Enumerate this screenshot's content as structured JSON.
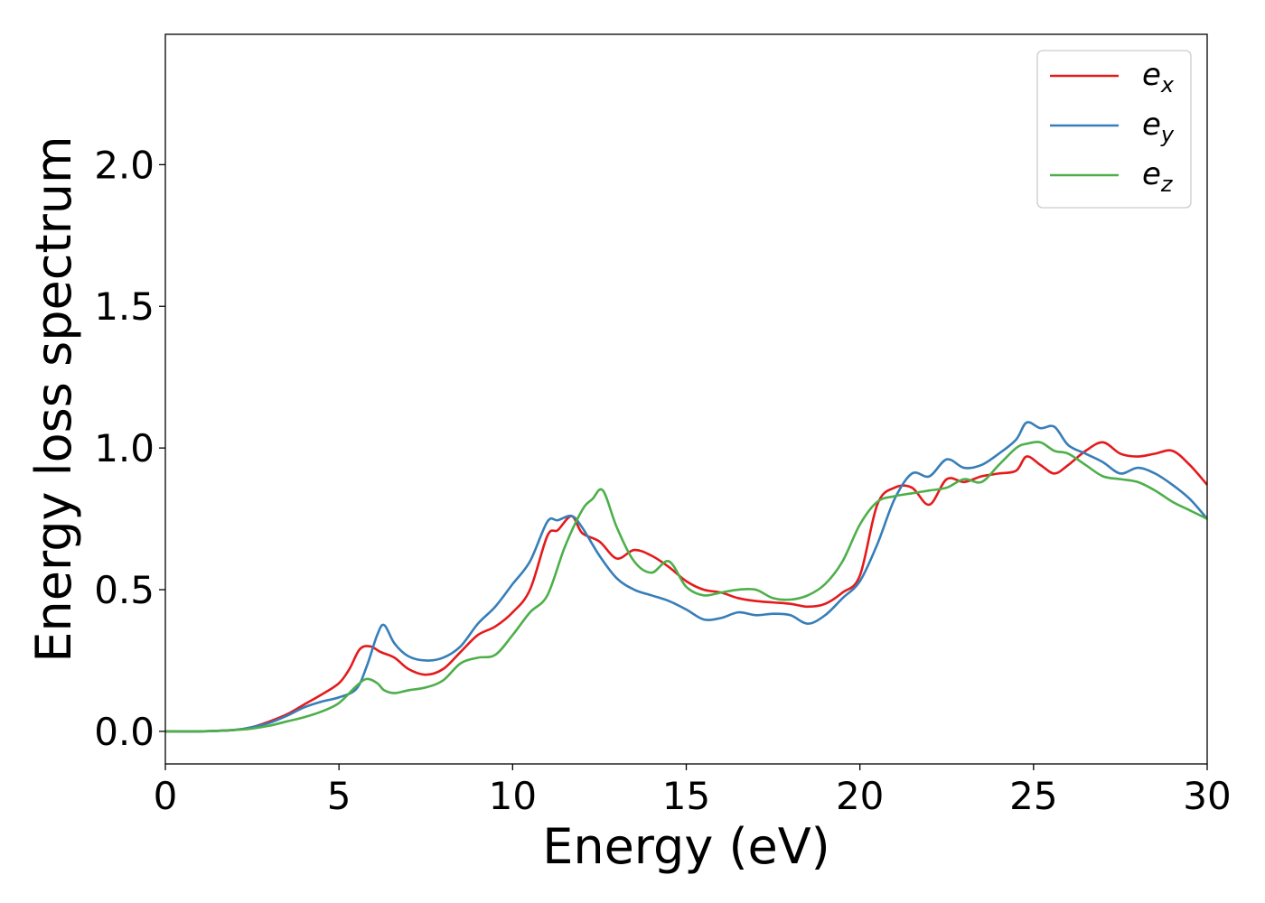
{
  "chart_data": {
    "type": "line",
    "title": "",
    "xlabel": "Energy (eV)",
    "ylabel": "Energy loss spectrum",
    "xlim": [
      0,
      30
    ],
    "ylim": [
      -0.115,
      2.46
    ],
    "xticks": [
      0,
      5,
      10,
      15,
      20,
      25,
      30
    ],
    "xtick_labels": [
      "0",
      "5",
      "10",
      "15",
      "20",
      "25",
      "30"
    ],
    "yticks": [
      0.0,
      0.5,
      1.0,
      1.5,
      2.0
    ],
    "ytick_labels": [
      "0.0",
      "0.5",
      "1.0",
      "1.5",
      "2.0"
    ],
    "grid": false,
    "legend_position": "top-right",
    "series": [
      {
        "name": "e_x",
        "legend_base": "e",
        "legend_sub": "x",
        "color": "#e41a1c",
        "x": [
          0,
          1,
          2,
          2.5,
          3,
          3.5,
          4,
          4.5,
          5,
          5.3,
          5.6,
          5.9,
          6.2,
          6.6,
          7,
          7.5,
          8,
          8.5,
          9,
          9.5,
          10,
          10.5,
          11,
          11.3,
          11.7,
          12,
          12.5,
          13,
          13.5,
          14,
          14.5,
          15,
          15.5,
          16,
          16.5,
          17,
          17.5,
          18,
          18.5,
          19,
          19.5,
          20,
          20.5,
          21,
          21.5,
          22,
          22.5,
          23,
          23.5,
          24,
          24.5,
          24.8,
          25.2,
          25.6,
          26,
          26.5,
          27,
          27.5,
          28,
          28.5,
          29,
          29.5,
          30
        ],
        "y": [
          0.0,
          0.0,
          0.005,
          0.015,
          0.035,
          0.06,
          0.095,
          0.13,
          0.17,
          0.22,
          0.29,
          0.3,
          0.28,
          0.26,
          0.22,
          0.2,
          0.22,
          0.28,
          0.34,
          0.37,
          0.42,
          0.5,
          0.69,
          0.71,
          0.76,
          0.7,
          0.67,
          0.61,
          0.64,
          0.62,
          0.58,
          0.53,
          0.5,
          0.49,
          0.47,
          0.46,
          0.455,
          0.45,
          0.44,
          0.45,
          0.49,
          0.55,
          0.8,
          0.86,
          0.86,
          0.8,
          0.89,
          0.88,
          0.9,
          0.91,
          0.92,
          0.97,
          0.94,
          0.91,
          0.94,
          0.99,
          1.02,
          0.98,
          0.97,
          0.98,
          0.99,
          0.94,
          0.87
        ]
      },
      {
        "name": "e_y",
        "legend_base": "e",
        "legend_sub": "y",
        "color": "#377eb8",
        "x": [
          0,
          1,
          2,
          2.5,
          3,
          3.5,
          4,
          4.5,
          5,
          5.5,
          5.8,
          6.1,
          6.3,
          6.6,
          7,
          7.5,
          8,
          8.5,
          9,
          9.5,
          10,
          10.5,
          11,
          11.3,
          11.7,
          12,
          12.5,
          13,
          13.5,
          14,
          14.5,
          15,
          15.5,
          16,
          16.5,
          17,
          17.5,
          18,
          18.5,
          19,
          19.5,
          20,
          20.5,
          21,
          21.5,
          22,
          22.5,
          23,
          23.5,
          24,
          24.5,
          24.8,
          25.2,
          25.6,
          26,
          26.5,
          27,
          27.5,
          28,
          28.5,
          29,
          29.5,
          30
        ],
        "y": [
          0.0,
          0.0,
          0.005,
          0.015,
          0.03,
          0.055,
          0.085,
          0.105,
          0.12,
          0.15,
          0.23,
          0.34,
          0.375,
          0.31,
          0.265,
          0.25,
          0.26,
          0.3,
          0.38,
          0.44,
          0.52,
          0.6,
          0.74,
          0.745,
          0.76,
          0.72,
          0.62,
          0.54,
          0.5,
          0.48,
          0.46,
          0.43,
          0.395,
          0.4,
          0.42,
          0.41,
          0.415,
          0.41,
          0.38,
          0.41,
          0.47,
          0.53,
          0.66,
          0.82,
          0.91,
          0.9,
          0.96,
          0.93,
          0.94,
          0.98,
          1.03,
          1.09,
          1.07,
          1.075,
          1.01,
          0.98,
          0.95,
          0.91,
          0.93,
          0.91,
          0.87,
          0.82,
          0.75
        ]
      },
      {
        "name": "e_z",
        "legend_base": "e",
        "legend_sub": "z",
        "color": "#4daf4a",
        "x": [
          0,
          1,
          2,
          2.5,
          3,
          3.5,
          4,
          4.5,
          5,
          5.5,
          5.8,
          6.1,
          6.3,
          6.6,
          7,
          7.5,
          8,
          8.5,
          9,
          9.5,
          10,
          10.5,
          11,
          11.5,
          12,
          12.3,
          12.6,
          13,
          13.5,
          14,
          14.5,
          15,
          15.5,
          16,
          16.5,
          17,
          17.5,
          18,
          18.5,
          19,
          19.5,
          20,
          20.5,
          21,
          21.5,
          22,
          22.5,
          23,
          23.5,
          24,
          24.5,
          24.8,
          25.2,
          25.6,
          26,
          26.5,
          27,
          27.5,
          28,
          28.5,
          29,
          29.5,
          30
        ],
        "y": [
          0.0,
          0.0,
          0.005,
          0.01,
          0.02,
          0.035,
          0.05,
          0.07,
          0.1,
          0.16,
          0.185,
          0.17,
          0.145,
          0.135,
          0.145,
          0.155,
          0.18,
          0.24,
          0.26,
          0.27,
          0.34,
          0.42,
          0.48,
          0.65,
          0.78,
          0.82,
          0.85,
          0.72,
          0.6,
          0.56,
          0.6,
          0.51,
          0.48,
          0.49,
          0.5,
          0.5,
          0.47,
          0.465,
          0.48,
          0.52,
          0.6,
          0.73,
          0.81,
          0.83,
          0.84,
          0.85,
          0.86,
          0.89,
          0.88,
          0.94,
          1.0,
          1.015,
          1.02,
          0.99,
          0.98,
          0.94,
          0.9,
          0.89,
          0.88,
          0.85,
          0.81,
          0.78,
          0.75
        ]
      }
    ]
  }
}
